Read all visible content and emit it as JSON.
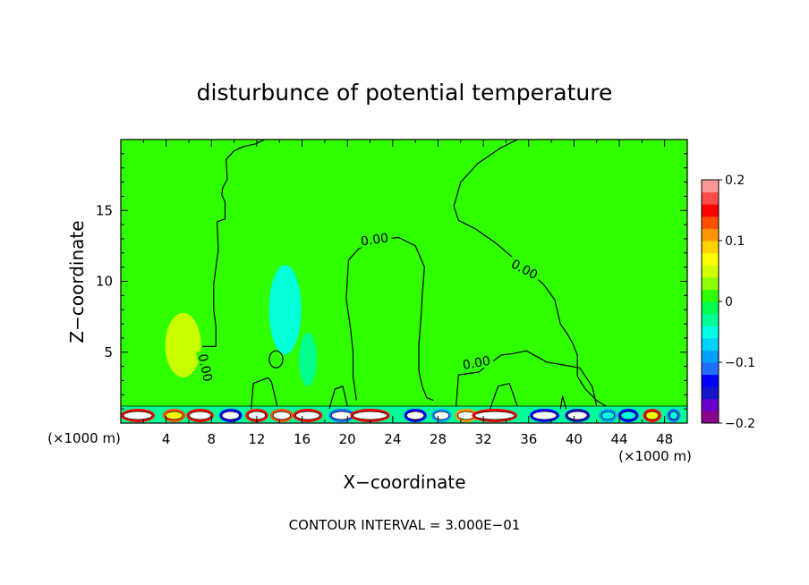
{
  "chart_data": {
    "type": "heatmap",
    "title": "disturbunce of potential temperature",
    "xlabel": "X−coordinate",
    "ylabel": "Z−coordinate",
    "x_unit_left": "(×1000 m)",
    "x_unit_right": "(×1000 m)",
    "footer": "CONTOUR INTERVAL = 3.000E−01",
    "xlim": [
      0,
      50
    ],
    "ylim": [
      0,
      20
    ],
    "x_ticks": [
      4,
      8,
      12,
      16,
      20,
      24,
      28,
      32,
      36,
      40,
      44,
      48
    ],
    "y_ticks": [
      5,
      10,
      15
    ],
    "contour_label": "0.00",
    "colorbar": {
      "range": [
        -0.2,
        0.2
      ],
      "tick_labels": [
        "0.2",
        "0.1",
        "0",
        "−0.1",
        "−0.2"
      ],
      "colors": [
        "#8b008b",
        "#6a00c8",
        "#1414c8",
        "#0000ff",
        "#1e6eff",
        "#00a0ff",
        "#00d2ff",
        "#00ffe6",
        "#00ff96",
        "#00ff50",
        "#30ff00",
        "#8cff00",
        "#d2ff00",
        "#ffff00",
        "#ffd200",
        "#ff9600",
        "#ff5000",
        "#ff0000",
        "#ff4b4b",
        "#ff9696"
      ]
    },
    "background_value": 0.0,
    "anomalies": [
      {
        "kind": "warm",
        "x": 5.5,
        "z": 5.5,
        "value": 0.04
      },
      {
        "kind": "cool",
        "x": 14.5,
        "z": 8,
        "value": -0.04
      },
      {
        "kind": "cool",
        "x": 16.5,
        "z": 4.5,
        "value": -0.03
      }
    ],
    "zero_contours": [
      {
        "x": [
          7.2,
          8.4,
          8.4,
          8.2,
          8.2,
          8.6,
          8.5,
          9.2,
          9.2,
          8.9,
          9.0,
          9.4,
          9.3,
          10.0,
          10.8,
          11.9,
          12.7
        ],
        "z": [
          5.4,
          5.4,
          6.8,
          8.0,
          9.8,
          12.2,
          14.2,
          14.4,
          15.6,
          16.1,
          16.6,
          17.2,
          18.6,
          19.2,
          19.5,
          19.7,
          20.0
        ]
      },
      {
        "x": [
          20.8,
          20.5,
          20.5,
          20.3,
          19.9,
          20.1,
          21.0,
          22.7,
          24.5,
          26.0,
          26.8,
          26.6,
          26.5,
          26.3,
          26.3,
          26.6,
          27.0,
          27.6
        ],
        "z": [
          1.6,
          3.3,
          5.0,
          6.5,
          8.8,
          11.5,
          12.3,
          12.9,
          13.1,
          12.5,
          11.0,
          9.0,
          7.5,
          5.5,
          3.7,
          2.6,
          1.8,
          1.6
        ]
      },
      {
        "x": [
          35.0,
          33.5,
          31.5,
          30.0,
          29.4,
          29.8,
          31.3,
          33.1,
          35.0,
          37.3,
          38.3,
          38.8,
          39.4,
          39.9,
          40.3,
          40.3,
          41.0,
          42.0,
          42.8
        ],
        "z": [
          20.0,
          19.4,
          18.3,
          17.0,
          15.3,
          14.3,
          13.7,
          12.7,
          11.4,
          9.8,
          8.7,
          7.0,
          6.3,
          5.6,
          4.8,
          3.3,
          2.4,
          1.6,
          1.2
        ]
      },
      {
        "x": [
          29.6,
          29.8,
          31.6,
          32.2,
          33.6,
          34.6,
          35.8,
          37.6,
          40.5,
          41.6,
          42.0
        ],
        "z": [
          1.2,
          3.4,
          3.6,
          4.0,
          4.8,
          4.9,
          5.1,
          4.3,
          3.9,
          2.6,
          1.2
        ]
      },
      {
        "x": [
          11.5,
          11.7,
          13.0,
          13.3,
          13.8
        ],
        "z": [
          1.0,
          2.8,
          3.2,
          2.9,
          1.2
        ]
      },
      {
        "x": [
          18.4,
          18.9,
          19.6,
          20.0
        ],
        "z": [
          1.0,
          2.4,
          2.6,
          1.2
        ]
      },
      {
        "x": [
          32.6,
          33.3,
          34.3,
          35.0
        ],
        "z": [
          1.0,
          2.6,
          2.8,
          1.2
        ]
      },
      {
        "x": [
          38.8,
          39.0,
          39.3
        ],
        "z": [
          1.0,
          1.9,
          1.0
        ]
      }
    ],
    "closed_contours": [
      {
        "cx": 13.7,
        "cz": 4.5,
        "rx": 0.6,
        "rz": 0.6
      }
    ],
    "contour_labels": [
      {
        "x": 22.4,
        "z": 12.9,
        "rotate": -8
      },
      {
        "x": 35.6,
        "z": 10.8,
        "rotate": 28
      },
      {
        "x": 31.4,
        "z": 4.2,
        "rotate": -10
      },
      {
        "x": 7.4,
        "z": 3.9,
        "rotate": 78
      }
    ],
    "surface_cells": [
      {
        "x": 1.5,
        "w": 3.0,
        "c": "#ff0000",
        "in": "#ffffff"
      },
      {
        "x": 4.7,
        "w": 2.0,
        "c": "#ff5000",
        "in": "#ffff00"
      },
      {
        "x": 7.0,
        "w": 2.4,
        "c": "#ff0000",
        "in": "#ffffff"
      },
      {
        "x": 9.7,
        "w": 2.0,
        "c": "#0000ff",
        "in": "#ffffff"
      },
      {
        "x": 12.0,
        "w": 2.0,
        "c": "#ff0000",
        "in": "#ffffff"
      },
      {
        "x": 14.2,
        "w": 2.0,
        "c": "#ff5000",
        "in": "#ffffff"
      },
      {
        "x": 16.5,
        "w": 2.6,
        "c": "#ff0000",
        "in": "#ffffff"
      },
      {
        "x": 19.5,
        "w": 2.3,
        "c": "#1e6eff",
        "in": "#ffffff"
      },
      {
        "x": 22.0,
        "w": 3.5,
        "c": "#ff0000",
        "in": "#ffffff"
      },
      {
        "x": 26.0,
        "w": 2.0,
        "c": "#0000ff",
        "in": "#ffffff"
      },
      {
        "x": 28.3,
        "w": 1.8,
        "c": "#00a0ff",
        "in": "#ffffff"
      },
      {
        "x": 30.5,
        "w": 2.0,
        "c": "#ff9600",
        "in": "#ffffff"
      },
      {
        "x": 33.0,
        "w": 4.0,
        "c": "#ff0000",
        "in": "#ffffff"
      },
      {
        "x": 37.4,
        "w": 2.6,
        "c": "#0000ff",
        "in": "#ffffff"
      },
      {
        "x": 40.3,
        "w": 2.2,
        "c": "#1414c8",
        "in": "#ffffff"
      },
      {
        "x": 43.0,
        "w": 1.6,
        "c": "#00a0ff",
        "in": "#00ffe6"
      },
      {
        "x": 44.8,
        "w": 1.8,
        "c": "#0000ff",
        "in": "#00ffe6"
      },
      {
        "x": 46.9,
        "w": 1.6,
        "c": "#ff0000",
        "in": "#ffff00"
      },
      {
        "x": 48.8,
        "w": 1.2,
        "c": "#1e6eff",
        "in": "#00ffe6"
      }
    ]
  }
}
